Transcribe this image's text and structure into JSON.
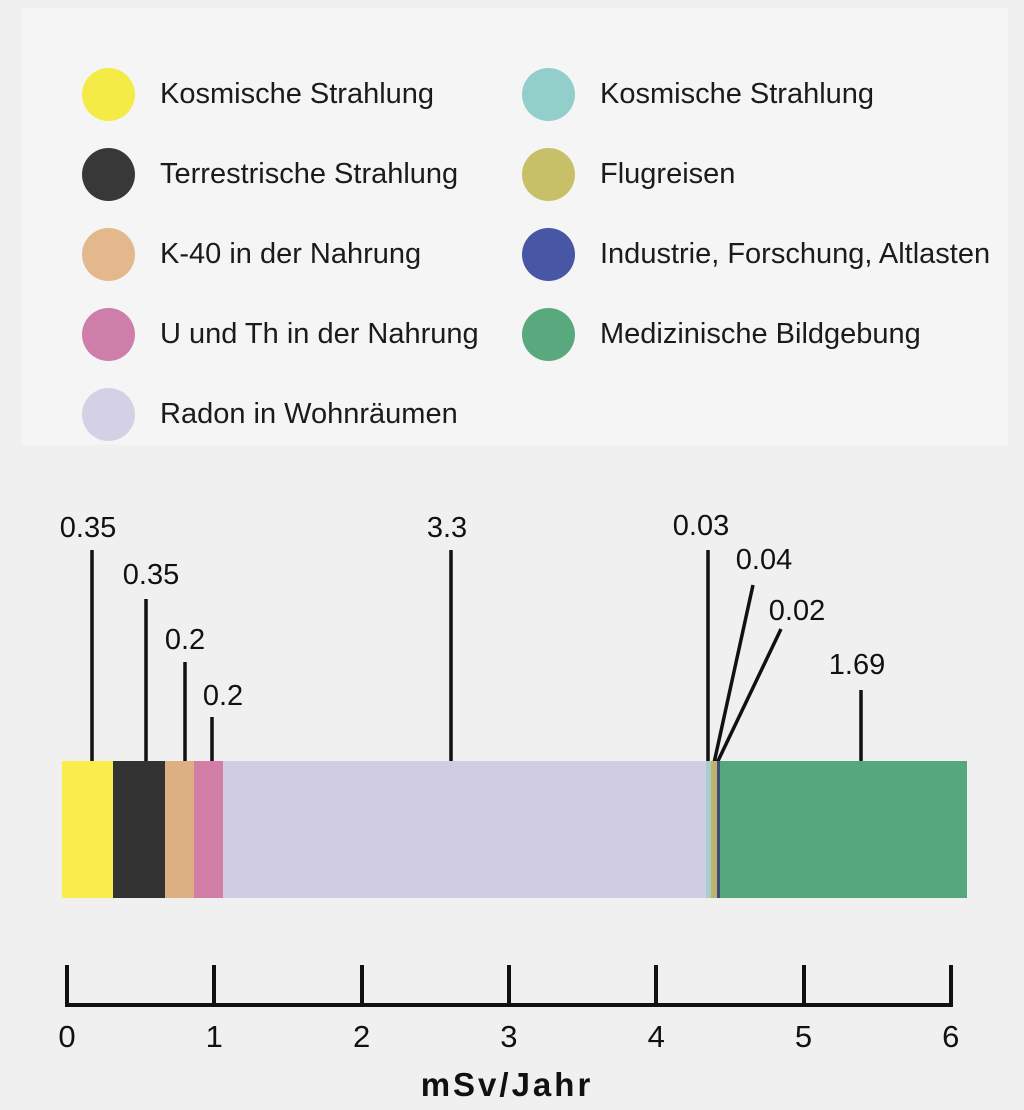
{
  "legend": {
    "left": [
      {
        "label": "Kosmische Strahlung",
        "color": "#f5eb47",
        "icon": "circle-swatch"
      },
      {
        "label": "Terrestrische Strahlung",
        "color": "#383838",
        "icon": "circle-swatch"
      },
      {
        "label": "K-40 in der Nahrung",
        "color": "#e3b88d",
        "icon": "circle-swatch"
      },
      {
        "label": "U und Th in der Nahrung",
        "color": "#ce7fa9",
        "icon": "circle-swatch"
      },
      {
        "label": "Radon in Wohnräumen",
        "color": "#d4d1e7",
        "icon": "circle-swatch"
      }
    ],
    "right": [
      {
        "label": "Kosmische Strahlung",
        "color": "#92cfca",
        "icon": "circle-swatch"
      },
      {
        "label": "Flugreisen",
        "color": "#c8bf69",
        "icon": "circle-swatch"
      },
      {
        "label": "Industrie, Forschung, Altlasten",
        "color": "#4757a5",
        "icon": "circle-swatch"
      },
      {
        "label": "Medizinische Bildgebung",
        "color": "#5aa87e",
        "icon": "circle-swatch"
      }
    ]
  },
  "chart_data": {
    "type": "bar",
    "variant": "stacked-horizontal",
    "title": "",
    "xlabel": "mSv/Jahr",
    "ylabel": "",
    "axis": {
      "min": 0,
      "max": 6,
      "tick_labels": [
        "0",
        "1",
        "2",
        "3",
        "4",
        "5",
        "6"
      ],
      "tick_values": [
        0,
        1,
        2,
        3,
        4,
        5,
        6
      ]
    },
    "total": 6.18,
    "segments": [
      {
        "label": "Kosmische Strahlung",
        "value": 0.35,
        "value_label": "0.35",
        "color": "#f8ed4d"
      },
      {
        "label": "Terrestrische Strahlung",
        "value": 0.35,
        "value_label": "0.35",
        "color": "#333333"
      },
      {
        "label": "K-40 in der Nahrung",
        "value": 0.2,
        "value_label": "0.2",
        "color": "#ddb084"
      },
      {
        "label": "U und Th in der Nahrung",
        "value": 0.2,
        "value_label": "0.2",
        "color": "#d37ea7"
      },
      {
        "label": "Radon in Wohnräumen",
        "value": 3.3,
        "value_label": "3.3",
        "color": "#cfcce4"
      },
      {
        "label": "Kosmische Strahlung",
        "value": 0.03,
        "value_label": "0.03",
        "color": "#a5cecf"
      },
      {
        "label": "Flugreisen",
        "value": 0.04,
        "value_label": "0.04",
        "color": "#bdb468"
      },
      {
        "label": "Industrie, Forschung, Altlasten",
        "value": 0.02,
        "value_label": "0.02",
        "color": "#3c4b80"
      },
      {
        "label": "Medizinische Bildgebung",
        "value": 1.69,
        "value_label": "1.69",
        "color": "#55a87c"
      }
    ],
    "line_color": "#111111"
  }
}
